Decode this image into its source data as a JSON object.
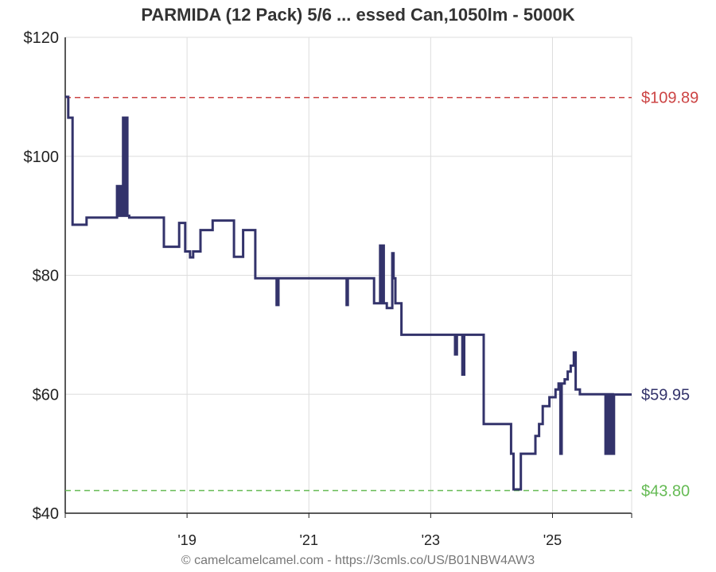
{
  "title": "PARMIDA (12 Pack) 5/6 ... essed Can,1050lm - 5000K",
  "footer": "© camelcamelcamel.com - https://3cmls.co/US/B01NBW4AW3",
  "colors": {
    "price_line": "#33336b",
    "highest": "#cc4444",
    "lowest": "#66bb55",
    "grid": "#dddddd",
    "axis": "#222222"
  },
  "chart_data": {
    "type": "line",
    "title": "PARMIDA (12 Pack) 5/6 ... essed Can,1050lm - 5000K",
    "xlabel": "",
    "ylabel": "",
    "ylim": [
      40,
      120
    ],
    "xlim": [
      2017.0,
      2026.3
    ],
    "grid": true,
    "y_ticks": [
      40,
      60,
      80,
      100,
      120
    ],
    "y_tick_labels": [
      "$40",
      "$60",
      "$80",
      "$100",
      "$120"
    ],
    "x_ticks": [
      2019,
      2021,
      2023,
      2025
    ],
    "x_tick_labels": [
      "'19",
      "'21",
      "'23",
      "'25"
    ],
    "reference_lines": [
      {
        "value": 109.89,
        "label": "$109.89",
        "color": "#cc4444",
        "style": "dashed"
      },
      {
        "value": 43.8,
        "label": "$43.80",
        "color": "#66bb55",
        "style": "dashed"
      }
    ],
    "current_price_label": "$59.95",
    "current_price_value": 59.95,
    "series": [
      {
        "style": "step",
        "color": "#33336b",
        "points": [
          [
            2017.0,
            110.0
          ],
          [
            2017.05,
            106.5
          ],
          [
            2017.12,
            88.5
          ],
          [
            2017.35,
            89.7
          ],
          [
            2017.8,
            89.7
          ],
          [
            2017.85,
            95.0
          ],
          [
            2017.88,
            90.0
          ],
          [
            2017.9,
            95.0
          ],
          [
            2017.93,
            90.0
          ],
          [
            2017.95,
            106.5
          ],
          [
            2017.98,
            90.0
          ],
          [
            2018.0,
            106.5
          ],
          [
            2018.02,
            90.0
          ],
          [
            2018.05,
            89.7
          ],
          [
            2018.6,
            89.7
          ],
          [
            2018.62,
            84.8
          ],
          [
            2018.85,
            84.8
          ],
          [
            2018.87,
            88.8
          ],
          [
            2018.95,
            88.8
          ],
          [
            2018.97,
            84.0
          ],
          [
            2019.05,
            83.0
          ],
          [
            2019.1,
            84.0
          ],
          [
            2019.2,
            84.0
          ],
          [
            2019.22,
            87.6
          ],
          [
            2019.4,
            87.6
          ],
          [
            2019.42,
            89.2
          ],
          [
            2019.75,
            89.2
          ],
          [
            2019.77,
            83.1
          ],
          [
            2019.9,
            83.1
          ],
          [
            2019.92,
            87.6
          ],
          [
            2020.1,
            87.6
          ],
          [
            2020.12,
            79.5
          ],
          [
            2020.45,
            79.5
          ],
          [
            2020.47,
            75.0
          ],
          [
            2020.5,
            79.5
          ],
          [
            2021.45,
            79.5
          ],
          [
            2021.6,
            79.5
          ],
          [
            2021.62,
            75.0
          ],
          [
            2021.64,
            79.5
          ],
          [
            2022.05,
            79.5
          ],
          [
            2022.07,
            75.3
          ],
          [
            2022.15,
            75.3
          ],
          [
            2022.17,
            85.0
          ],
          [
            2022.19,
            75.3
          ],
          [
            2022.21,
            85.0
          ],
          [
            2022.23,
            75.3
          ],
          [
            2022.28,
            74.5
          ],
          [
            2022.35,
            74.5
          ],
          [
            2022.37,
            83.7
          ],
          [
            2022.39,
            79.5
          ],
          [
            2022.42,
            75.3
          ],
          [
            2022.5,
            75.3
          ],
          [
            2022.52,
            70.0
          ],
          [
            2023.38,
            70.0
          ],
          [
            2023.4,
            66.7
          ],
          [
            2023.43,
            70.0
          ],
          [
            2023.5,
            70.0
          ],
          [
            2023.52,
            63.3
          ],
          [
            2023.55,
            70.0
          ],
          [
            2023.85,
            70.0
          ],
          [
            2023.87,
            55.0
          ],
          [
            2024.3,
            55.0
          ],
          [
            2024.32,
            50.0
          ],
          [
            2024.36,
            44.0
          ],
          [
            2024.46,
            44.0
          ],
          [
            2024.48,
            50.0
          ],
          [
            2024.7,
            50.0
          ],
          [
            2024.72,
            53.0
          ],
          [
            2024.78,
            55.0
          ],
          [
            2024.84,
            58.0
          ],
          [
            2024.95,
            59.5
          ],
          [
            2025.05,
            60.8
          ],
          [
            2025.1,
            61.8
          ],
          [
            2025.13,
            50.0
          ],
          [
            2025.15,
            61.8
          ],
          [
            2025.2,
            62.5
          ],
          [
            2025.25,
            63.8
          ],
          [
            2025.3,
            64.8
          ],
          [
            2025.35,
            67.0
          ],
          [
            2025.38,
            60.8
          ],
          [
            2025.45,
            60.0
          ],
          [
            2025.85,
            60.0
          ],
          [
            2025.87,
            50.0
          ],
          [
            2025.89,
            60.0
          ],
          [
            2025.91,
            50.0
          ],
          [
            2025.93,
            60.0
          ],
          [
            2025.95,
            50.0
          ],
          [
            2025.97,
            60.0
          ],
          [
            2025.99,
            50.0
          ],
          [
            2026.01,
            59.95
          ],
          [
            2026.3,
            59.95
          ]
        ]
      }
    ]
  }
}
